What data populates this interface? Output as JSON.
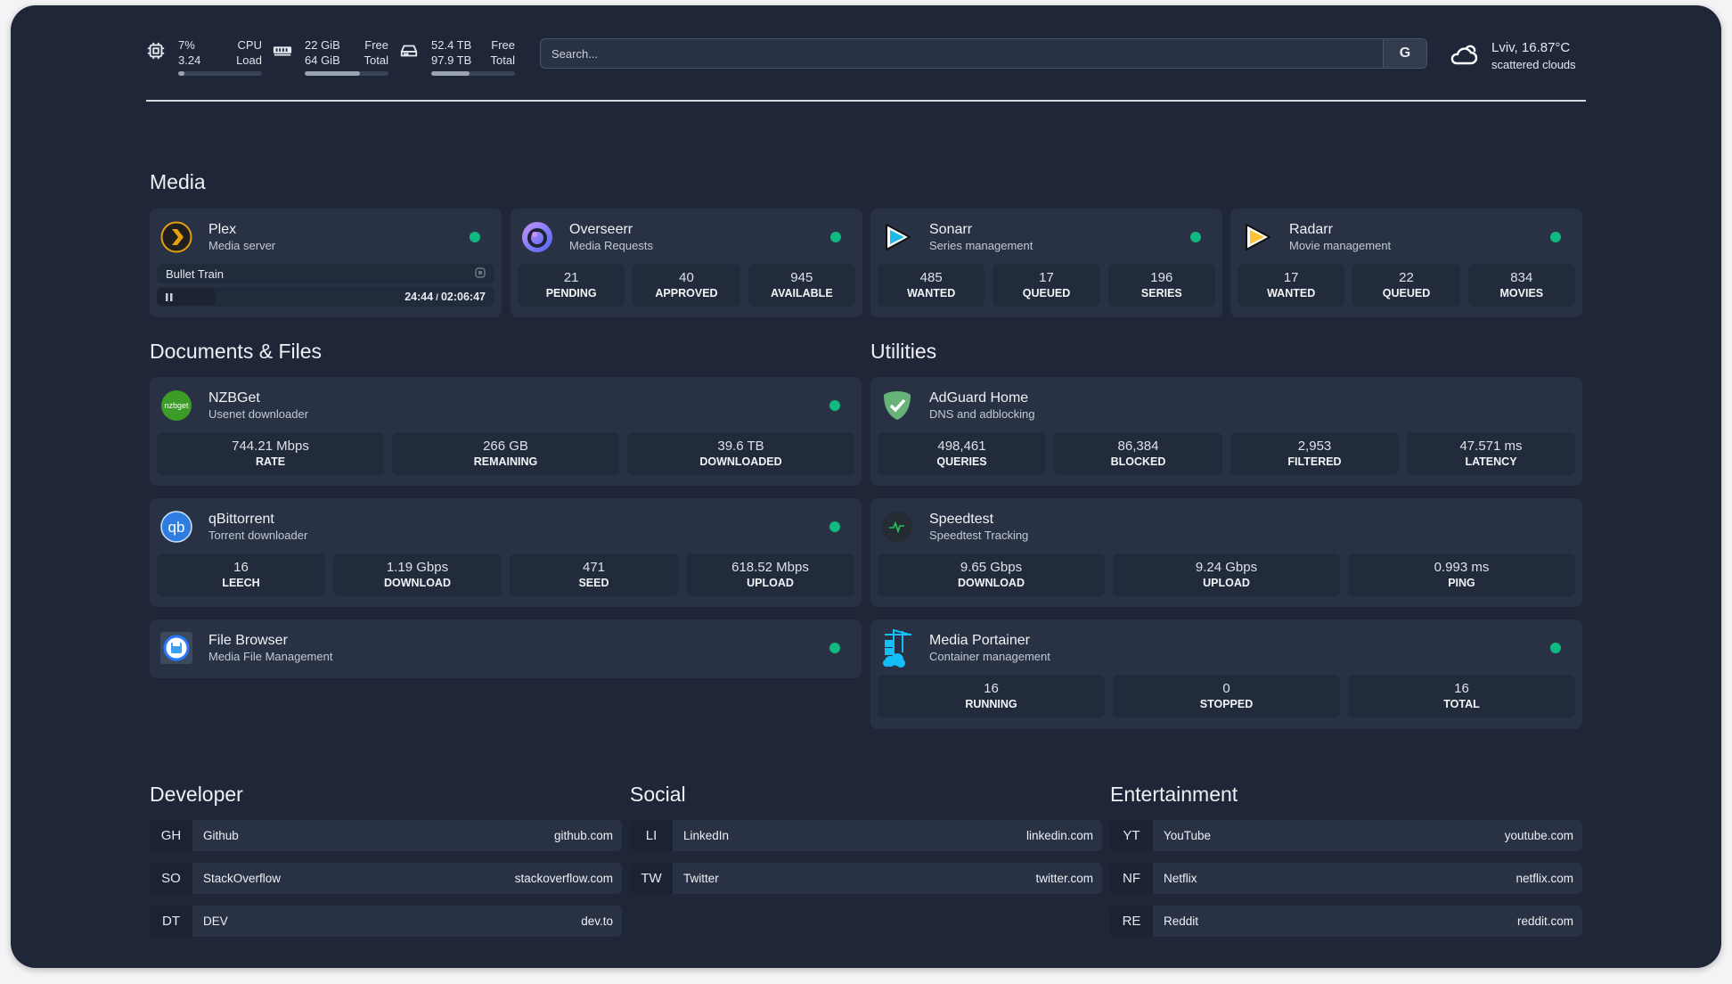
{
  "system": {
    "cpu": {
      "icon": "cpu-icon",
      "value": "7%",
      "value2": "3.24",
      "label": "CPU",
      "label2": "Load",
      "fill_percent": 7
    },
    "memory": {
      "icon": "memory-icon",
      "value": "22 GiB",
      "value2": "64 GiB",
      "label": "Free",
      "label2": "Total",
      "fill_percent": 66
    },
    "disk": {
      "icon": "disk-icon",
      "value": "52.4 TB",
      "value2": "97.9 TB",
      "label": "Free",
      "label2": "Total",
      "fill_percent": 46
    }
  },
  "search": {
    "placeholder": "Search...",
    "button": "G"
  },
  "weather": {
    "icon": "cloud-sun-icon",
    "location_temp": "Lviv, 16.87°C",
    "condition": "scattered clouds"
  },
  "colors": {
    "background": "#1e2638",
    "card": "#283244",
    "stat_box": "#222b3c",
    "status_online": "#10b981"
  },
  "sections": {
    "media": {
      "title": "Media",
      "cards": [
        {
          "title": "Plex",
          "subtitle": "Media server",
          "icon": "plex-icon",
          "status": "online",
          "now_playing": {
            "title": "Bullet Train",
            "state": "paused",
            "position": "24:44",
            "duration": "02:06:47",
            "separator": "/",
            "progress_percent": 19
          }
        },
        {
          "title": "Overseerr",
          "subtitle": "Media Requests",
          "icon": "overseerr-icon",
          "status": "online",
          "stats": [
            {
              "value": "21",
              "label": "PENDING"
            },
            {
              "value": "40",
              "label": "APPROVED"
            },
            {
              "value": "945",
              "label": "AVAILABLE"
            }
          ]
        },
        {
          "title": "Sonarr",
          "subtitle": "Series management",
          "icon": "sonarr-icon",
          "status": "online",
          "stats": [
            {
              "value": "485",
              "label": "WANTED"
            },
            {
              "value": "17",
              "label": "QUEUED"
            },
            {
              "value": "196",
              "label": "SERIES"
            }
          ]
        },
        {
          "title": "Radarr",
          "subtitle": "Movie management",
          "icon": "radarr-icon",
          "status": "online",
          "stats": [
            {
              "value": "17",
              "label": "WANTED"
            },
            {
              "value": "22",
              "label": "QUEUED"
            },
            {
              "value": "834",
              "label": "MOVIES"
            }
          ]
        }
      ]
    },
    "documents": {
      "title": "Documents & Files",
      "cards": [
        {
          "title": "NZBGet",
          "subtitle": "Usenet downloader",
          "icon": "nzbget-icon",
          "status": "online",
          "stats": [
            {
              "value": "744.21 Mbps",
              "label": "RATE"
            },
            {
              "value": "266 GB",
              "label": "REMAINING"
            },
            {
              "value": "39.6 TB",
              "label": "DOWNLOADED"
            }
          ]
        },
        {
          "title": "qBittorrent",
          "subtitle": "Torrent downloader",
          "icon": "qbittorrent-icon",
          "status": "online",
          "stats": [
            {
              "value": "16",
              "label": "LEECH"
            },
            {
              "value": "1.19 Gbps",
              "label": "DOWNLOAD"
            },
            {
              "value": "471",
              "label": "SEED"
            },
            {
              "value": "618.52 Mbps",
              "label": "UPLOAD"
            }
          ]
        },
        {
          "title": "File Browser",
          "subtitle": "Media File Management",
          "icon": "filebrowser-icon",
          "status": "online"
        }
      ]
    },
    "utilities": {
      "title": "Utilities",
      "cards": [
        {
          "title": "AdGuard Home",
          "subtitle": "DNS and adblocking",
          "icon": "adguard-icon",
          "stats": [
            {
              "value": "498,461",
              "label": "QUERIES"
            },
            {
              "value": "86,384",
              "label": "BLOCKED"
            },
            {
              "value": "2,953",
              "label": "FILTERED"
            },
            {
              "value": "47.571 ms",
              "label": "LATENCY"
            }
          ]
        },
        {
          "title": "Speedtest",
          "subtitle": "Speedtest Tracking",
          "icon": "speedtest-icon",
          "stats": [
            {
              "value": "9.65 Gbps",
              "label": "DOWNLOAD"
            },
            {
              "value": "9.24 Gbps",
              "label": "UPLOAD"
            },
            {
              "value": "0.993 ms",
              "label": "PING"
            }
          ]
        },
        {
          "title": "Media Portainer",
          "subtitle": "Container management",
          "icon": "portainer-icon",
          "status": "online",
          "stats": [
            {
              "value": "16",
              "label": "RUNNING"
            },
            {
              "value": "0",
              "label": "STOPPED"
            },
            {
              "value": "16",
              "label": "TOTAL"
            }
          ]
        }
      ]
    }
  },
  "bookmarks": [
    {
      "title": "Developer",
      "items": [
        {
          "abbr": "GH",
          "name": "Github",
          "url": "github.com"
        },
        {
          "abbr": "SO",
          "name": "StackOverflow",
          "url": "stackoverflow.com"
        },
        {
          "abbr": "DT",
          "name": "DEV",
          "url": "dev.to"
        }
      ]
    },
    {
      "title": "Social",
      "items": [
        {
          "abbr": "LI",
          "name": "LinkedIn",
          "url": "linkedin.com"
        },
        {
          "abbr": "TW",
          "name": "Twitter",
          "url": "twitter.com"
        }
      ]
    },
    {
      "title": "Entertainment",
      "items": [
        {
          "abbr": "YT",
          "name": "YouTube",
          "url": "youtube.com"
        },
        {
          "abbr": "NF",
          "name": "Netflix",
          "url": "netflix.com"
        },
        {
          "abbr": "RE",
          "name": "Reddit",
          "url": "reddit.com"
        }
      ]
    }
  ]
}
